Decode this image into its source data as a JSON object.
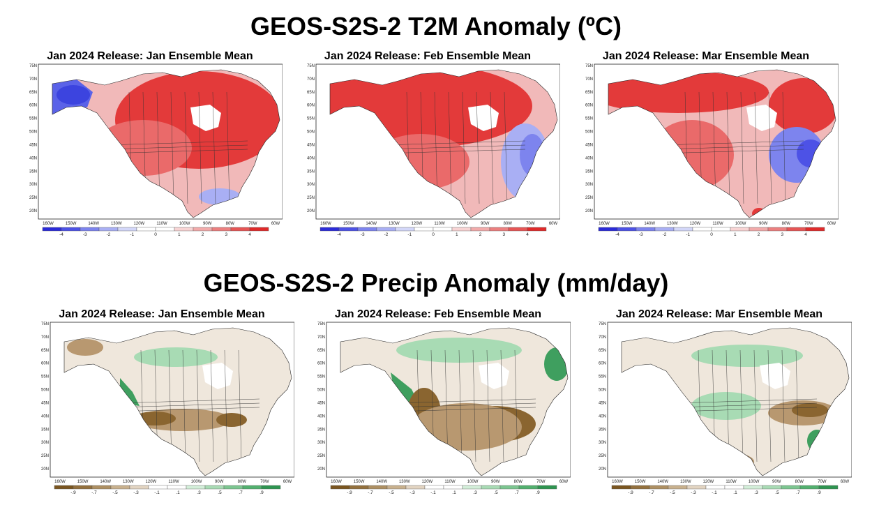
{
  "sections": [
    {
      "id": "t2m",
      "title": "GEOS-S2S-2 T2M Anomaly (ºC)",
      "colorbar": {
        "labels": [
          "-4",
          "-3",
          "-2",
          "-1",
          "0",
          "1",
          "2",
          "3",
          "4"
        ],
        "colors": [
          "#2b2bd9",
          "#4d52e6",
          "#7d84ee",
          "#a9aff4",
          "#d3d7f9",
          "#ffffff",
          "#ffffff",
          "#f8d4d4",
          "#f2aaaa",
          "#ec7f7f",
          "#e65555",
          "#e02a2a"
        ]
      },
      "panels": [
        {
          "title": "Jan 2024 Release: Jan Ensemble Mean"
        },
        {
          "title": "Jan 2024 Release: Feb Ensemble Mean"
        },
        {
          "title": "Jan 2024 Release: Mar Ensemble Mean"
        }
      ]
    },
    {
      "id": "precip",
      "title": "GEOS-S2S-2 Precip Anomaly (mm/day)",
      "colorbar": {
        "labels": [
          "-.9",
          "-.7",
          "-.5",
          "-.3",
          "-.1",
          ".1",
          ".3",
          ".5",
          ".7",
          ".9"
        ],
        "colors": [
          "#7a5520",
          "#93703d",
          "#ad8f62",
          "#c8b08d",
          "#e2d4c1",
          "#ffffff",
          "#ffffff",
          "#d3eed9",
          "#a8dbb4",
          "#7cc690",
          "#52b06e",
          "#2e9450"
        ]
      },
      "panels": [
        {
          "title": "Jan 2024 Release: Jan Ensemble Mean"
        },
        {
          "title": "Jan 2024 Release: Feb Ensemble Mean"
        },
        {
          "title": "Jan 2024 Release: Mar Ensemble Mean"
        }
      ]
    }
  ],
  "latitude_labels": [
    "75N",
    "70N",
    "65N",
    "60N",
    "55N",
    "50N",
    "45N",
    "40N",
    "35N",
    "30N",
    "25N",
    "20N"
  ],
  "longitude_labels": [
    "160W",
    "150W",
    "140W",
    "130W",
    "120W",
    "110W",
    "100W",
    "90W",
    "80W",
    "70W",
    "60W"
  ]
}
